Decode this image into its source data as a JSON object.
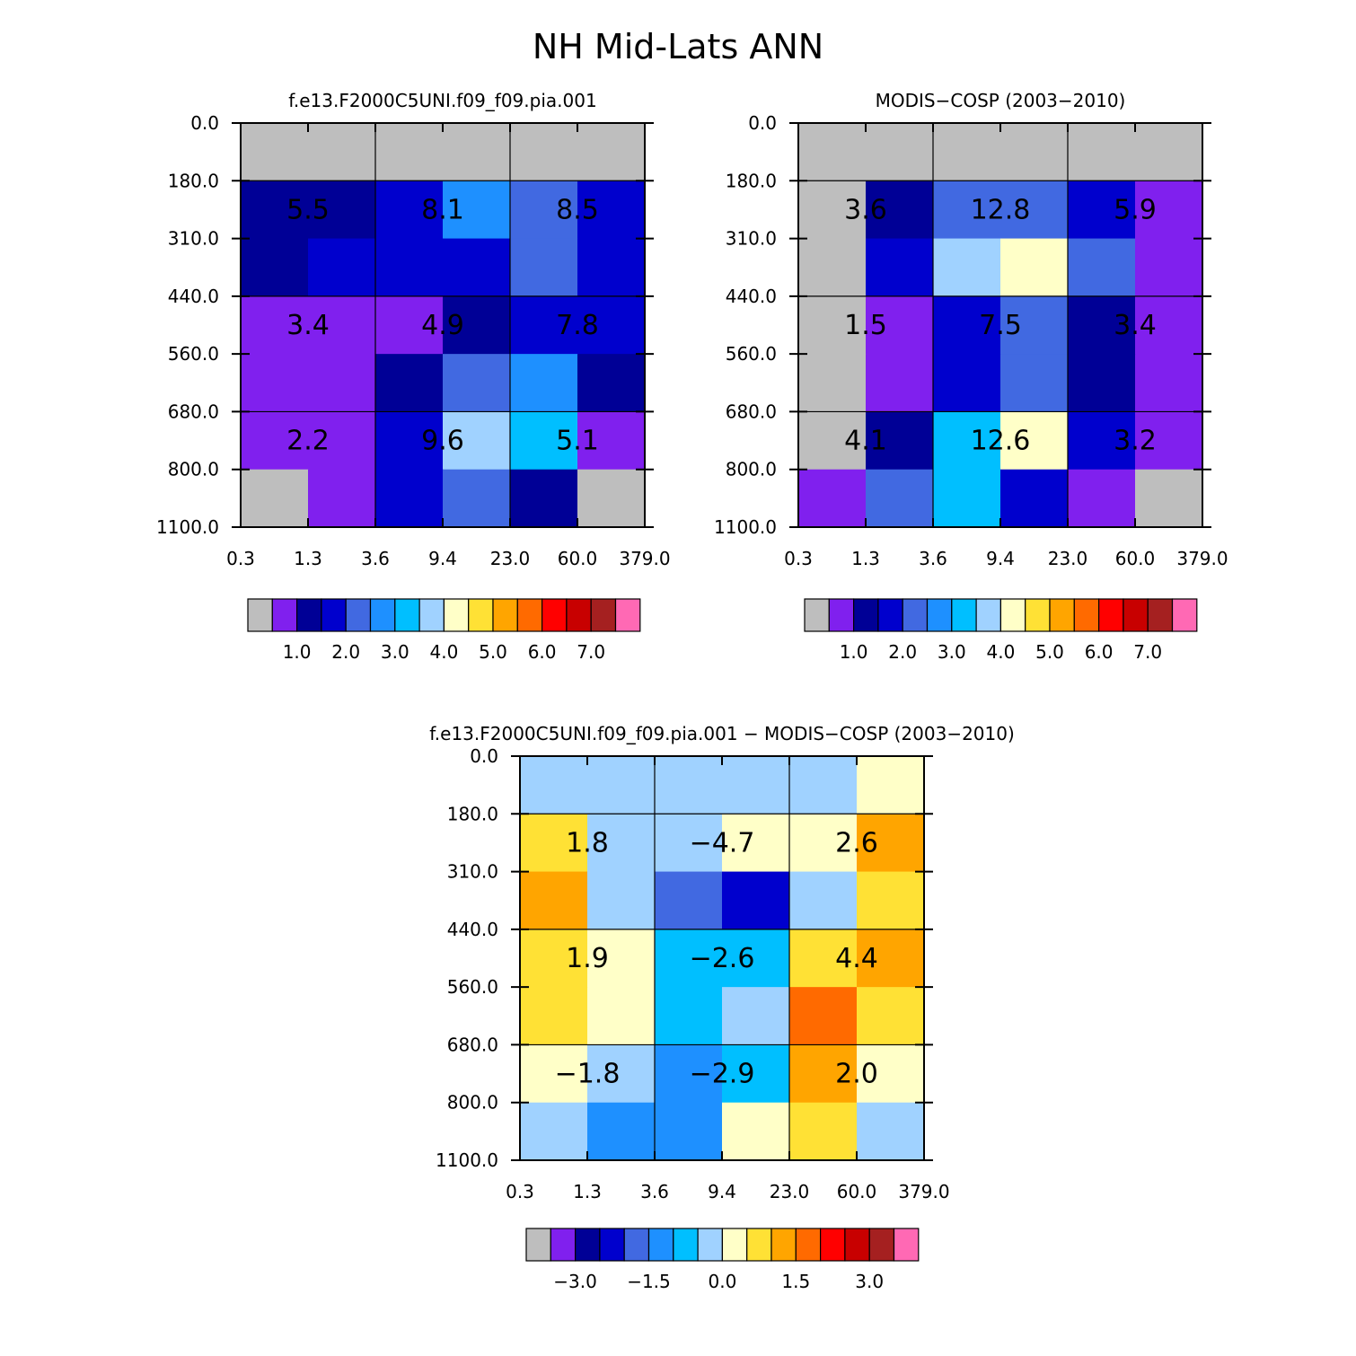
{
  "title": "NH Mid-Lats ANN",
  "chart_data": [
    {
      "type": "heatmap",
      "panel": "left",
      "title": "f.e13.F2000C5UNI.f09_f09.pia.001",
      "x_ticks": [
        "0.3",
        "1.3",
        "3.6",
        "9.4",
        "23.0",
        "60.0",
        "379.0"
      ],
      "y_ticks": [
        "0.0",
        "180.0",
        "310.0",
        "440.0",
        "560.0",
        "680.0",
        "800.0",
        "1100.0"
      ],
      "cells": [
        [
          0,
          0,
          0,
          0,
          0,
          0
        ],
        [
          2,
          2,
          3,
          5,
          4,
          3
        ],
        [
          2,
          3,
          3,
          3,
          4,
          3
        ],
        [
          1,
          1,
          1,
          2,
          3,
          3
        ],
        [
          1,
          1,
          2,
          4,
          5,
          2
        ],
        [
          1,
          1,
          3,
          7,
          6,
          1
        ],
        [
          0,
          1,
          3,
          4,
          2,
          0
        ]
      ],
      "box_labels": [
        [
          "5.5",
          "8.1",
          "8.5"
        ],
        [
          "3.4",
          "4.9",
          "7.8"
        ],
        [
          "2.2",
          "9.6",
          "5.1"
        ]
      ],
      "colorbar": {
        "colors": [
          "#bebebe",
          "#8020ee",
          "#000096",
          "#0000cd",
          "#4169e1",
          "#1e90ff",
          "#00bfff",
          "#a0d2ff",
          "#ffffc8",
          "#ffe135",
          "#ffa500",
          "#ff6a00",
          "#ff0000",
          "#c80000",
          "#a52020",
          "#ff69b4"
        ],
        "labels": [
          "1.0",
          "2.0",
          "3.0",
          "4.0",
          "5.0",
          "6.0",
          "7.0"
        ]
      }
    },
    {
      "type": "heatmap",
      "panel": "right",
      "title": "MODIS-COSP (2003-2010)",
      "x_ticks": [
        "0.3",
        "1.3",
        "3.6",
        "9.4",
        "23.0",
        "60.0",
        "379.0"
      ],
      "y_ticks": [
        "0.0",
        "180.0",
        "310.0",
        "440.0",
        "560.0",
        "680.0",
        "800.0",
        "1100.0"
      ],
      "cells": [
        [
          0,
          0,
          0,
          0,
          0,
          0
        ],
        [
          0,
          2,
          4,
          4,
          3,
          1
        ],
        [
          0,
          3,
          7,
          8,
          4,
          1
        ],
        [
          0,
          1,
          3,
          4,
          2,
          1
        ],
        [
          0,
          1,
          3,
          4,
          2,
          1
        ],
        [
          0,
          2,
          6,
          8,
          3,
          1
        ],
        [
          1,
          4,
          6,
          3,
          1,
          0
        ]
      ],
      "box_labels": [
        [
          "3.6",
          "12.8",
          "5.9"
        ],
        [
          "1.5",
          "7.5",
          "3.4"
        ],
        [
          "4.1",
          "12.6",
          "3.2"
        ]
      ],
      "colorbar": {
        "colors": [
          "#bebebe",
          "#8020ee",
          "#000096",
          "#0000cd",
          "#4169e1",
          "#1e90ff",
          "#00bfff",
          "#a0d2ff",
          "#ffffc8",
          "#ffe135",
          "#ffa500",
          "#ff6a00",
          "#ff0000",
          "#c80000",
          "#a52020",
          "#ff69b4"
        ],
        "labels": [
          "1.0",
          "2.0",
          "3.0",
          "4.0",
          "5.0",
          "6.0",
          "7.0"
        ]
      }
    },
    {
      "type": "heatmap",
      "panel": "difference",
      "title": "f.e13.F2000C5UNI.f09_f09.pia.001 - MODIS-COSP (2003-2010)",
      "x_ticks": [
        "0.3",
        "1.3",
        "3.6",
        "9.4",
        "23.0",
        "60.0",
        "379.0"
      ],
      "y_ticks": [
        "0.0",
        "180.0",
        "310.0",
        "440.0",
        "560.0",
        "680.0",
        "800.0",
        "1100.0"
      ],
      "cells": [
        [
          7,
          7,
          7,
          7,
          7,
          8
        ],
        [
          9,
          7,
          7,
          8,
          8,
          10
        ],
        [
          10,
          7,
          4,
          3,
          7,
          9
        ],
        [
          9,
          8,
          6,
          6,
          9,
          10
        ],
        [
          9,
          8,
          6,
          7,
          11,
          9
        ],
        [
          8,
          7,
          5,
          6,
          10,
          8
        ],
        [
          7,
          5,
          5,
          8,
          9,
          7
        ]
      ],
      "box_labels": [
        [
          "1.8",
          "-4.7",
          "2.6"
        ],
        [
          "1.9",
          "-2.6",
          "4.4"
        ],
        [
          "-1.8",
          "-2.9",
          "2.0"
        ]
      ],
      "colorbar": {
        "colors": [
          "#bebebe",
          "#8020ee",
          "#000096",
          "#0000cd",
          "#4169e1",
          "#1e90ff",
          "#00bfff",
          "#a0d2ff",
          "#ffffc8",
          "#ffe135",
          "#ffa500",
          "#ff6a00",
          "#ff0000",
          "#c80000",
          "#a52020",
          "#ff69b4"
        ],
        "labels": [
          "-3.0",
          "-1.5",
          "0.0",
          "1.5",
          "3.0"
        ]
      }
    }
  ]
}
